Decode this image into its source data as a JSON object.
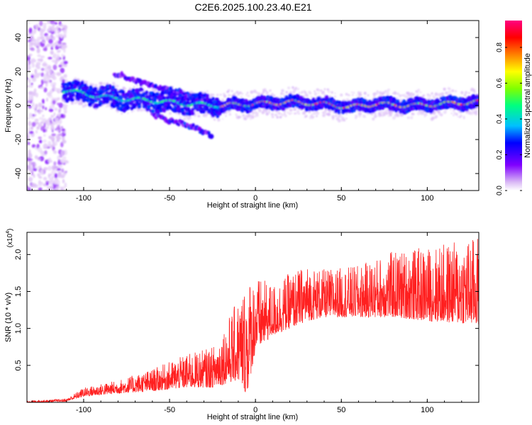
{
  "title": "C2E6.2025.100.23.40.E21",
  "chart_data": [
    {
      "type": "heatmap",
      "xlabel": "Height of straight line (km)",
      "ylabel": "Frequency (Hz)",
      "xlim": [
        -133,
        130
      ],
      "ylim": [
        -50,
        50
      ],
      "x_ticks": [
        -100,
        -50,
        0,
        50,
        100
      ],
      "y_ticks": [
        -40,
        -20,
        0,
        20,
        40
      ],
      "colorbar": {
        "label": "Normalized spectral amplitude",
        "range": [
          0,
          0.95
        ],
        "ticks": [
          0.0,
          0.2,
          0.4,
          0.6,
          0.8
        ],
        "colormap": [
          "#ffffff",
          "#d9b8f5",
          "#8000ff",
          "#0000ff",
          "#00c0ff",
          "#00ff80",
          "#80ff00",
          "#ffff00",
          "#ff8000",
          "#ff0000",
          "#ff0080"
        ]
      },
      "ridge": {
        "description_points": [
          [
            -110,
            9
          ],
          [
            -100,
            7
          ],
          [
            -80,
            4
          ],
          [
            -60,
            3
          ],
          [
            -40,
            1
          ],
          [
            -20,
            0
          ],
          [
            0,
            1
          ],
          [
            20,
            2
          ],
          [
            40,
            1
          ],
          [
            55,
            -1
          ],
          [
            70,
            1
          ],
          [
            90,
            0
          ],
          [
            110,
            1
          ],
          [
            128,
            2
          ]
        ]
      },
      "branches": [
        {
          "points": [
            [
              -82,
              19
            ],
            [
              -70,
              15
            ],
            [
              -55,
              10
            ],
            [
              -40,
              7
            ],
            [
              -30,
              4
            ]
          ]
        },
        {
          "points": [
            [
              -60,
              -6
            ],
            [
              -45,
              -10
            ],
            [
              -35,
              -13
            ],
            [
              -25,
              -18
            ]
          ]
        }
      ],
      "noise_region": {
        "x_range": [
          -133,
          -110
        ],
        "y_range": [
          -50,
          50
        ]
      }
    },
    {
      "type": "line",
      "xlabel": "Height of straight line (km)",
      "ylabel": "SNR (10 * v/v)",
      "y_multiplier": "(x10^4)",
      "xlim": [
        -133,
        130
      ],
      "ylim": [
        0,
        2.3
      ],
      "x_ticks": [
        -100,
        -50,
        0,
        50,
        100
      ],
      "y_ticks": [
        0.5,
        1.0,
        1.5,
        2.0
      ],
      "y_tick_labels": [
        "0.5",
        "1.0",
        "1.5",
        "2.0"
      ],
      "color": "#ff2020",
      "envelope": {
        "x": [
          -133,
          -110,
          -100,
          -80,
          -60,
          -40,
          -25,
          -10,
          -5,
          0,
          10,
          20,
          30,
          40,
          60,
          80,
          100,
          130
        ],
        "base": [
          0.0,
          0.01,
          0.08,
          0.12,
          0.15,
          0.2,
          0.2,
          0.3,
          0.1,
          0.7,
          0.9,
          1.0,
          1.1,
          1.15,
          1.15,
          1.15,
          1.1,
          1.05
        ],
        "peak": [
          0.02,
          0.05,
          0.2,
          0.3,
          0.45,
          0.65,
          0.75,
          1.4,
          1.7,
          1.7,
          1.6,
          1.75,
          1.85,
          1.8,
          1.85,
          2.05,
          2.1,
          2.25
        ]
      }
    }
  ]
}
